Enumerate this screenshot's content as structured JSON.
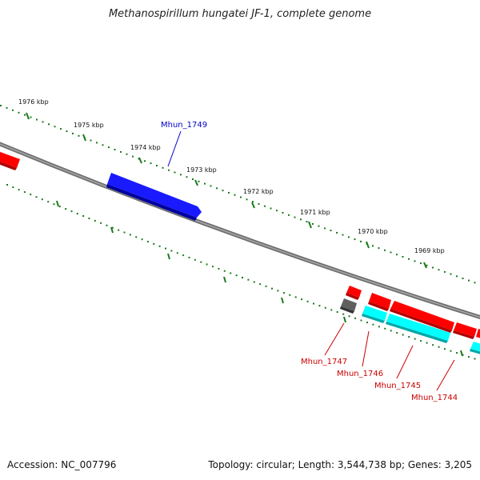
{
  "title": "Methanospirillum hungatei JF-1, complete genome",
  "footer": {
    "accession": "Accession: NC_007796",
    "summary": "Topology: circular; Length: 3,544,738 bp; Genes: 3,205"
  },
  "ruler_labels": [
    "1976 kbp",
    "1975 kbp",
    "1974 kbp",
    "1973 kbp",
    "1972 kbp",
    "1971 kbp",
    "1970 kbp",
    "1969 kbp"
  ],
  "gene_labels": [
    {
      "name": "Mhun_1749",
      "color": "#0000cc"
    },
    {
      "name": "Mhun_1747",
      "color": "#cc0000"
    },
    {
      "name": "Mhun_1746",
      "color": "#cc0000"
    },
    {
      "name": "Mhun_1745",
      "color": "#cc0000"
    },
    {
      "name": "Mhun_1744",
      "color": "#cc0000"
    }
  ],
  "colors": {
    "backbone": "#808080",
    "ruler": "#1a7a1a",
    "forward_gene": "#ff0000",
    "reverse_gene": "#00ffff",
    "highlight_gene": "#1a1aff",
    "other_gene": "#606060"
  }
}
